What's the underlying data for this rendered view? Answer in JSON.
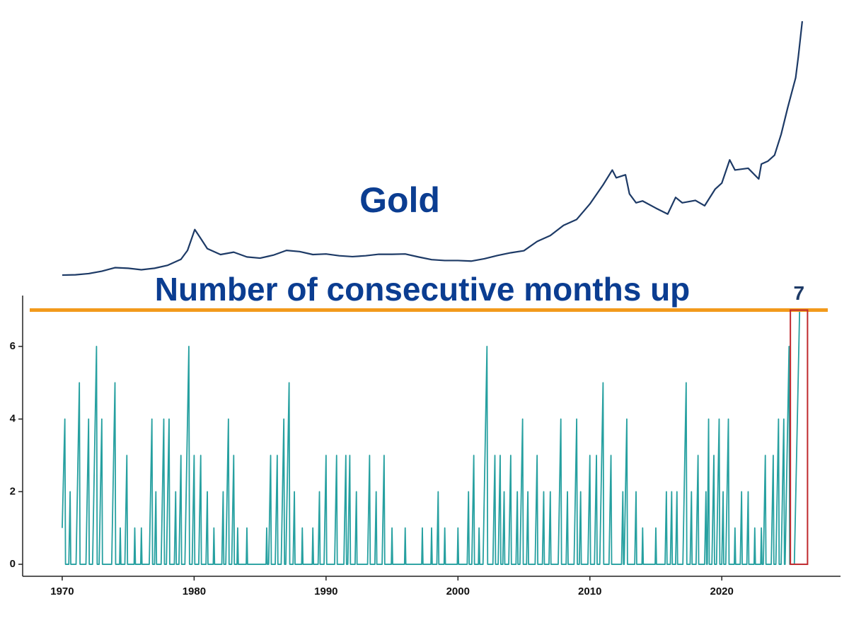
{
  "chart_data": [
    {
      "type": "line",
      "title": "Gold",
      "color": "#1d3a66",
      "xlim": [
        1967,
        2029
      ],
      "ylim": [
        0,
        4300
      ],
      "x": [
        1970,
        1971,
        1972,
        1973,
        1974,
        1975,
        1976,
        1977,
        1978,
        1979,
        1979.5,
        1980.05,
        1980.5,
        1981,
        1982,
        1983,
        1984,
        1985,
        1986,
        1987,
        1988,
        1989,
        1990,
        1991,
        1992,
        1993,
        1994,
        1995,
        1996,
        1997,
        1998,
        1999,
        2000,
        2001,
        2002,
        2003,
        2004,
        2005,
        2006,
        2007,
        2008,
        2009,
        2010,
        2011,
        2011.7,
        2012,
        2012.7,
        2013,
        2013.5,
        2014,
        2015,
        2015.9,
        2016.5,
        2017,
        2018,
        2018.7,
        2019.5,
        2020,
        2020.6,
        2021,
        2022,
        2022.8,
        2023,
        2023.5,
        2024,
        2024.5,
        2025,
        2025.3,
        2025.6,
        2025.8,
        2026,
        2026.1
      ],
      "values": [
        35,
        40,
        60,
        100,
        160,
        150,
        125,
        150,
        200,
        300,
        450,
        800,
        650,
        480,
        380,
        420,
        340,
        320,
        370,
        450,
        430,
        380,
        390,
        360,
        345,
        360,
        385,
        385,
        390,
        340,
        295,
        280,
        280,
        270,
        310,
        365,
        410,
        445,
        600,
        700,
        870,
        970,
        1230,
        1550,
        1800,
        1670,
        1720,
        1400,
        1250,
        1280,
        1160,
        1060,
        1340,
        1250,
        1290,
        1200,
        1480,
        1580,
        1970,
        1800,
        1830,
        1650,
        1900,
        1950,
        2050,
        2400,
        2850,
        3100,
        3350,
        3700,
        4100,
        4300
      ]
    },
    {
      "type": "line",
      "title": "Number of consecutive months up",
      "color": "#26a0a0",
      "xlim": [
        1967,
        2029
      ],
      "ylim": [
        -0.33,
        7.4
      ],
      "xticks": [
        1970,
        1980,
        1990,
        2000,
        2010,
        2020
      ],
      "yticks": [
        0,
        2,
        4,
        6
      ],
      "reference_line": {
        "value": 7,
        "color": "#f29a1c"
      },
      "highlight": {
        "value": 7,
        "xmin": 2025.2,
        "xmax": 2026.5,
        "color": "#c0282d"
      },
      "x": [
        1970,
        1970.2,
        1970.25,
        1970.5,
        1970.6,
        1970.65,
        1971.05,
        1971.3,
        1971.35,
        1971.8,
        1972.0,
        1972.05,
        1972.3,
        1972.6,
        1972.65,
        1972.8,
        1973.0,
        1973.05,
        1973.75,
        1974.0,
        1974.05,
        1974.35,
        1974.4,
        1974.45,
        1974.75,
        1974.9,
        1974.95,
        1975.45,
        1975.5,
        1975.55,
        1975.95,
        1976.0,
        1976.05,
        1976.6,
        1976.8,
        1976.85,
        1977.0,
        1977.1,
        1977.15,
        1977.5,
        1977.7,
        1977.75,
        1977.9,
        1978.1,
        1978.15,
        1978.5,
        1978.6,
        1978.65,
        1978.85,
        1979.0,
        1979.05,
        1979.3,
        1979.6,
        1979.65,
        1979.85,
        1980.0,
        1980.05,
        1980.35,
        1980.5,
        1980.55,
        1980.9,
        1981.0,
        1981.05,
        1981.45,
        1981.5,
        1981.55,
        1982.1,
        1982.2,
        1982.25,
        1982.4,
        1982.6,
        1982.65,
        1982.85,
        1983.0,
        1983.05,
        1983.25,
        1983.3,
        1983.35,
        1983.95,
        1984.0,
        1984.05,
        1985.45,
        1985.5,
        1985.55,
        1985.65,
        1985.8,
        1985.85,
        1986.15,
        1986.3,
        1986.35,
        1986.6,
        1986.8,
        1986.85,
        1986.95,
        1987.2,
        1987.25,
        1987.5,
        1987.6,
        1987.65,
        1988.15,
        1988.2,
        1988.25,
        1988.95,
        1989.0,
        1989.05,
        1989.4,
        1989.5,
        1989.55,
        1989.85,
        1990.0,
        1990.05,
        1990.65,
        1990.8,
        1990.85,
        1991.35,
        1991.5,
        1991.55,
        1991.65,
        1991.8,
        1991.85,
        1992.2,
        1992.3,
        1992.35,
        1993.15,
        1993.3,
        1993.35,
        1993.7,
        1993.8,
        1993.85,
        1994.25,
        1994.4,
        1994.45,
        1994.95,
        1995.0,
        1995.05,
        1995.95,
        1996.0,
        1996.05,
        1997.25,
        1997.3,
        1997.35,
        1997.95,
        1998.0,
        1998.05,
        1998.4,
        1998.5,
        1998.55,
        1998.95,
        1999.0,
        1999.05,
        1999.95,
        2000.0,
        2000.05,
        2000.7,
        2000.8,
        2000.85,
        2001.05,
        2001.2,
        2001.25,
        2001.55,
        2001.6,
        2001.65,
        2001.9,
        2002.2,
        2002.25,
        2002.65,
        2002.8,
        2002.85,
        2003.05,
        2003.2,
        2003.25,
        2003.4,
        2003.5,
        2003.55,
        2003.85,
        2004.0,
        2004.05,
        2004.4,
        2004.5,
        2004.55,
        2004.7,
        2004.9,
        2004.95,
        2005.2,
        2005.3,
        2005.35,
        2005.85,
        2006.0,
        2006.05,
        2006.4,
        2006.5,
        2006.55,
        2006.9,
        2007.0,
        2007.05,
        2007.6,
        2007.8,
        2007.85,
        2008.2,
        2008.3,
        2008.35,
        2008.8,
        2009.0,
        2009.05,
        2009.2,
        2009.3,
        2009.35,
        2009.85,
        2010.0,
        2010.05,
        2010.35,
        2010.5,
        2010.55,
        2010.75,
        2011.0,
        2011.05,
        2011.45,
        2011.6,
        2011.65,
        2012.4,
        2012.5,
        2012.55,
        2012.6,
        2012.8,
        2012.85,
        2013.4,
        2013.5,
        2013.55,
        2013.95,
        2014.0,
        2014.05,
        2014.95,
        2015.0,
        2015.05,
        2015.7,
        2015.8,
        2015.85,
        2016.1,
        2016.2,
        2016.25,
        2016.5,
        2016.6,
        2016.65,
        2017.05,
        2017.3,
        2017.35,
        2017.6,
        2017.7,
        2017.75,
        2018.05,
        2018.2,
        2018.25,
        2018.7,
        2018.8,
        2018.85,
        2018.9,
        2019.0,
        2019.05,
        2019.25,
        2019.4,
        2019.45,
        2019.6,
        2019.8,
        2019.85,
        2020.0,
        2020.1,
        2020.15,
        2020.3,
        2020.5,
        2020.55,
        2020.95,
        2021.0,
        2021.05,
        2021.4,
        2021.5,
        2021.55,
        2021.9,
        2022.0,
        2022.05,
        2022.45,
        2022.5,
        2022.55,
        2022.95,
        2023.0,
        2023.05,
        2023.15,
        2023.3,
        2023.35,
        2023.75,
        2023.9,
        2023.95,
        2024.1,
        2024.3,
        2024.35,
        2024.5,
        2024.7,
        2024.75,
        2024.8,
        2025.1,
        2025.15,
        2025.5,
        2025.9
      ],
      "values": [
        1,
        4,
        0,
        0,
        2,
        0,
        0,
        5,
        0,
        0,
        4,
        0,
        0,
        6,
        0,
        0,
        4,
        0,
        0,
        5,
        0,
        0,
        1,
        0,
        0,
        3,
        0,
        0,
        1,
        0,
        0,
        1,
        0,
        0,
        4,
        0,
        0,
        2,
        0,
        0,
        4,
        0,
        0,
        4,
        0,
        0,
        2,
        0,
        0,
        3,
        0,
        0,
        6,
        0,
        0,
        3,
        0,
        0,
        3,
        0,
        0,
        2,
        0,
        0,
        1,
        0,
        0,
        2,
        0,
        0,
        4,
        0,
        0,
        3,
        0,
        0,
        1,
        0,
        0,
        1,
        0,
        0,
        1,
        0,
        0,
        3,
        0,
        0,
        3,
        0,
        0,
        4,
        0,
        0,
        5,
        0,
        0,
        2,
        0,
        0,
        1,
        0,
        0,
        1,
        0,
        0,
        2,
        0,
        0,
        3,
        0,
        0,
        3,
        0,
        0,
        3,
        0,
        0,
        3,
        0,
        0,
        2,
        0,
        0,
        3,
        0,
        0,
        2,
        0,
        0,
        3,
        0,
        0,
        1,
        0,
        0,
        1,
        0,
        0,
        1,
        0,
        0,
        1,
        0,
        0,
        2,
        0,
        0,
        1,
        0,
        0,
        1,
        0,
        0,
        2,
        0,
        0,
        3,
        0,
        0,
        1,
        0,
        0,
        6,
        0,
        0,
        3,
        0,
        0,
        3,
        0,
        0,
        2,
        0,
        0,
        3,
        0,
        0,
        2,
        0,
        0,
        4,
        0,
        0,
        2,
        0,
        0,
        3,
        0,
        0,
        2,
        0,
        0,
        2,
        0,
        0,
        4,
        0,
        0,
        2,
        0,
        0,
        4,
        0,
        0,
        2,
        0,
        0,
        3,
        0,
        0,
        3,
        0,
        0,
        5,
        0,
        0,
        3,
        0,
        0,
        2,
        0,
        0,
        4,
        0,
        0,
        2,
        0,
        0,
        1,
        0,
        0,
        1,
        0,
        0,
        2,
        0,
        0,
        2,
        0,
        0,
        2,
        0,
        0,
        5,
        0,
        0,
        2,
        0,
        0,
        3,
        0,
        0,
        2,
        0,
        0,
        4,
        0,
        0,
        3,
        0,
        0,
        4,
        0,
        0,
        2,
        0,
        0,
        4,
        0,
        0,
        1,
        0,
        0,
        2,
        0,
        0,
        2,
        0,
        0,
        1,
        0,
        0,
        1,
        0,
        0,
        3,
        0,
        0,
        3,
        0,
        0,
        4,
        0,
        0,
        4,
        0,
        0,
        6,
        0,
        0,
        7
      ]
    }
  ]
}
